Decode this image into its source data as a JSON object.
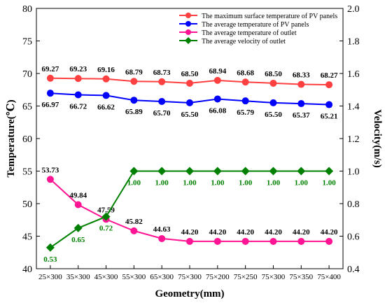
{
  "chart_data": {
    "type": "line",
    "categories": [
      "25×300",
      "35×300",
      "45×300",
      "55×300",
      "65×300",
      "75×300",
      "75×200",
      "75×250",
      "75×300",
      "75×350",
      "75×400"
    ],
    "xlabel": "Geometry(mm)",
    "ylabel_left": "Temperature(℃)",
    "ylabel_right": "Velocity(m/s)",
    "ylim_left": [
      40,
      80
    ],
    "yticks_left": [
      "40",
      "45",
      "50",
      "55",
      "60",
      "65",
      "70",
      "75",
      "80"
    ],
    "ylim_right": [
      0.4,
      2.0
    ],
    "yticks_right": [
      "0.4",
      "0.6",
      "0.8",
      "1.0",
      "1.2",
      "1.4",
      "1.6",
      "1.8",
      "2.0"
    ],
    "grid": false,
    "legend_position": "top-right",
    "series": [
      {
        "name": "The maximum surface temperature of PV panels",
        "axis": "left",
        "color": "#ff4040",
        "marker": "circle",
        "values": [
          69.27,
          69.23,
          69.16,
          68.79,
          68.73,
          68.5,
          68.94,
          68.68,
          68.5,
          68.33,
          68.27
        ],
        "labels": [
          "69.27",
          "69.23",
          "69.16",
          "68.79",
          "68.73",
          "68.50",
          "68.94",
          "68.68",
          "68.50",
          "68.33",
          "68.27"
        ],
        "label_color": "#000000"
      },
      {
        "name": "The average temperature of PV panels",
        "axis": "left",
        "color": "#0000ff",
        "marker": "circle",
        "values": [
          66.97,
          66.72,
          66.62,
          65.89,
          65.7,
          65.5,
          66.08,
          65.79,
          65.5,
          65.37,
          65.21
        ],
        "labels": [
          "66.97",
          "66.72",
          "66.62",
          "65.89",
          "65.70",
          "65.50",
          "66.08",
          "65.79",
          "65.50",
          "65.37",
          "65.21"
        ],
        "label_color": "#000000"
      },
      {
        "name": "The average temperature of outlet",
        "axis": "left",
        "color": "#ff1493",
        "marker": "circle",
        "values": [
          53.73,
          49.84,
          47.59,
          45.82,
          44.63,
          44.2,
          44.2,
          44.2,
          44.2,
          44.2,
          44.2
        ],
        "labels": [
          "53.73",
          "49.84",
          "47.59",
          "45.82",
          "44.63",
          "44.20",
          "44.20",
          "44.20",
          "44.20",
          "44.20",
          "44.20"
        ],
        "label_color": "#000000"
      },
      {
        "name": "The average velocity of outlet",
        "axis": "right",
        "color": "#008000",
        "marker": "diamond",
        "values": [
          0.53,
          0.65,
          0.72,
          1.0,
          1.0,
          1.0,
          1.0,
          1.0,
          1.0,
          1.0,
          1.0
        ],
        "labels": [
          "0.53",
          "0.65",
          "0.72",
          "1.00",
          "1.00",
          "1.00",
          "1.00",
          "1.00",
          "1.00",
          "1.00",
          "1.00"
        ],
        "label_color": "#008000"
      }
    ]
  }
}
